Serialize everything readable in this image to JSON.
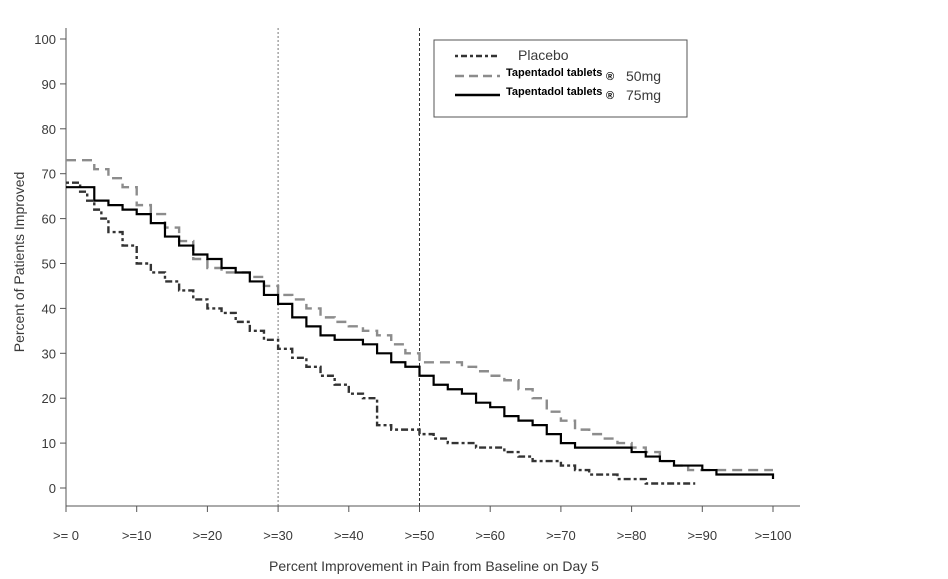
{
  "chart_data": {
    "type": "line",
    "title": "",
    "xlabel": "Percent Improvement in Pain from Baseline on Day 5",
    "ylabel": "Percent of Patients Improved",
    "xlim": [
      0,
      100
    ],
    "ylim": [
      0,
      100
    ],
    "x_ticks": [
      0,
      10,
      20,
      30,
      40,
      50,
      60,
      70,
      80,
      90,
      100
    ],
    "x_tick_labels": [
      ">= 0",
      ">=10",
      ">=20",
      ">=30",
      ">=40",
      ">=50",
      ">=60",
      ">=70",
      ">=80",
      ">=90",
      ">=100"
    ],
    "y_ticks": [
      0,
      10,
      20,
      30,
      40,
      50,
      60,
      70,
      80,
      90,
      100
    ],
    "y_tick_labels": [
      "0",
      "10",
      "20",
      "30",
      "40",
      "50",
      "60",
      "70",
      "80",
      "90",
      "100"
    ],
    "reference_lines_x": [
      30,
      50
    ],
    "grid": false,
    "legend_position": "top-right",
    "legend": [
      {
        "text": "Placebo",
        "style": "dash-dot",
        "color": "#333333"
      },
      {
        "prefix": "Tapentadol tablets",
        "symbol": "®",
        "dose": "50mg",
        "style": "dashed",
        "color": "#8c8c8c"
      },
      {
        "prefix": "Tapentadol tablets",
        "symbol": "®",
        "dose": "75mg",
        "style": "solid",
        "color": "#000000"
      }
    ],
    "series": [
      {
        "name": "Placebo",
        "color": "#333333",
        "style": "dash-dot",
        "x": [
          0,
          1,
          2,
          3,
          4,
          5,
          6,
          8,
          10,
          12,
          14,
          16,
          18,
          20,
          22,
          24,
          26,
          28,
          30,
          32,
          34,
          36,
          38,
          40,
          42,
          44,
          46,
          48,
          50,
          52,
          54,
          56,
          58,
          60,
          62,
          64,
          66,
          68,
          70,
          72,
          74,
          76,
          78,
          80,
          82,
          84,
          86,
          88,
          89
        ],
        "values": [
          68,
          68,
          66,
          64,
          62,
          60,
          57,
          54,
          50,
          48,
          46,
          44,
          42,
          40,
          39,
          37,
          35,
          33,
          31,
          29,
          27,
          25,
          23,
          21,
          20,
          14,
          13,
          13,
          12,
          11,
          10,
          10,
          9,
          9,
          8,
          7,
          6,
          6,
          5,
          4,
          3,
          3,
          2,
          2,
          1,
          1,
          1,
          1,
          1
        ]
      },
      {
        "name": "Tapentadol tablets® 50mg",
        "color": "#8c8c8c",
        "style": "dashed",
        "x": [
          0,
          2,
          4,
          6,
          8,
          10,
          12,
          14,
          16,
          18,
          20,
          22,
          24,
          26,
          28,
          30,
          32,
          34,
          36,
          38,
          40,
          42,
          44,
          46,
          48,
          50,
          52,
          54,
          56,
          58,
          60,
          62,
          64,
          66,
          68,
          70,
          72,
          74,
          76,
          78,
          80,
          82,
          84,
          86,
          88,
          90,
          95,
          100
        ],
        "values": [
          73,
          73,
          71,
          69,
          67,
          63,
          61,
          58,
          55,
          51,
          49,
          48,
          48,
          47,
          45,
          43,
          42,
          40,
          38,
          37,
          36,
          35,
          34,
          32,
          30,
          28,
          28,
          28,
          27,
          26,
          25,
          24,
          22,
          20,
          17,
          15,
          13,
          12,
          11,
          10,
          9,
          8,
          6,
          5,
          4,
          4,
          4,
          4
        ]
      },
      {
        "name": "Tapentadol tablets® 75mg",
        "color": "#000000",
        "style": "solid",
        "x": [
          0,
          2,
          4,
          6,
          8,
          10,
          12,
          14,
          16,
          18,
          20,
          22,
          24,
          26,
          28,
          30,
          32,
          34,
          36,
          38,
          40,
          42,
          44,
          46,
          48,
          50,
          52,
          54,
          56,
          58,
          60,
          62,
          64,
          66,
          68,
          70,
          72,
          74,
          76,
          78,
          80,
          82,
          84,
          86,
          88,
          90,
          92,
          95,
          100
        ],
        "values": [
          67,
          67,
          64,
          63,
          62,
          61,
          59,
          56,
          54,
          52,
          51,
          49,
          48,
          46,
          43,
          41,
          38,
          36,
          34,
          33,
          33,
          32,
          30,
          28,
          27,
          25,
          23,
          22,
          21,
          19,
          18,
          16,
          15,
          14,
          12,
          10,
          9,
          9,
          9,
          9,
          8,
          7,
          6,
          5,
          5,
          4,
          3,
          3,
          2
        ]
      }
    ]
  }
}
